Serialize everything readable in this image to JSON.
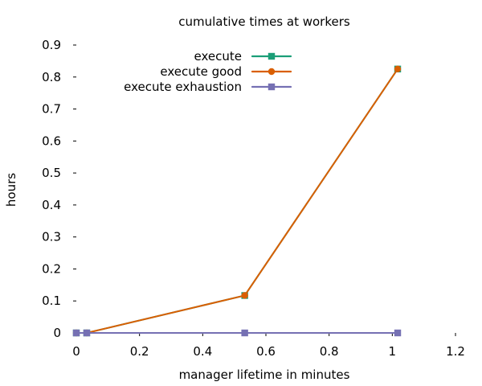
{
  "chart_data": {
    "type": "line",
    "title": "cumulative times at workers",
    "xlabel": "manager lifetime in minutes",
    "ylabel": "hours",
    "xlim": [
      0,
      1.2
    ],
    "ylim": [
      0,
      0.9
    ],
    "x_ticks": [
      0,
      0.2,
      0.4,
      0.6,
      0.8,
      1,
      1.2
    ],
    "x_tick_labels": [
      "0",
      "0.2",
      "0.4",
      "0.6",
      "0.8",
      "1",
      "1.2"
    ],
    "y_ticks": [
      0,
      0.1,
      0.2,
      0.3,
      0.4,
      0.5,
      0.6,
      0.7,
      0.8,
      0.9
    ],
    "y_tick_labels": [
      "0",
      "0.1",
      "0.2",
      "0.3",
      "0.4",
      "0.5",
      "0.6",
      "0.7",
      "0.8",
      "0.9"
    ],
    "grid": false,
    "legend_position": "top-center",
    "series": [
      {
        "name": "execute",
        "color": "#1b9e77",
        "marker": "square",
        "points": [
          {
            "x": 0.0,
            "y": 0.0
          },
          {
            "x": 0.033,
            "y": 0.0
          },
          {
            "x": 0.533,
            "y": 0.117
          },
          {
            "x": 1.017,
            "y": 0.825
          }
        ]
      },
      {
        "name": "execute good",
        "color": "#d95f02",
        "marker": "circle",
        "points": [
          {
            "x": 0.0,
            "y": 0.0
          },
          {
            "x": 0.033,
            "y": 0.0
          },
          {
            "x": 0.533,
            "y": 0.117
          },
          {
            "x": 1.017,
            "y": 0.825
          }
        ]
      },
      {
        "name": "execute exhaustion",
        "color": "#7570b3",
        "marker": "square",
        "points": [
          {
            "x": 0.0,
            "y": 0.0
          },
          {
            "x": 0.033,
            "y": 0.0
          },
          {
            "x": 0.533,
            "y": 0.0
          },
          {
            "x": 1.017,
            "y": 0.0
          }
        ]
      }
    ]
  }
}
